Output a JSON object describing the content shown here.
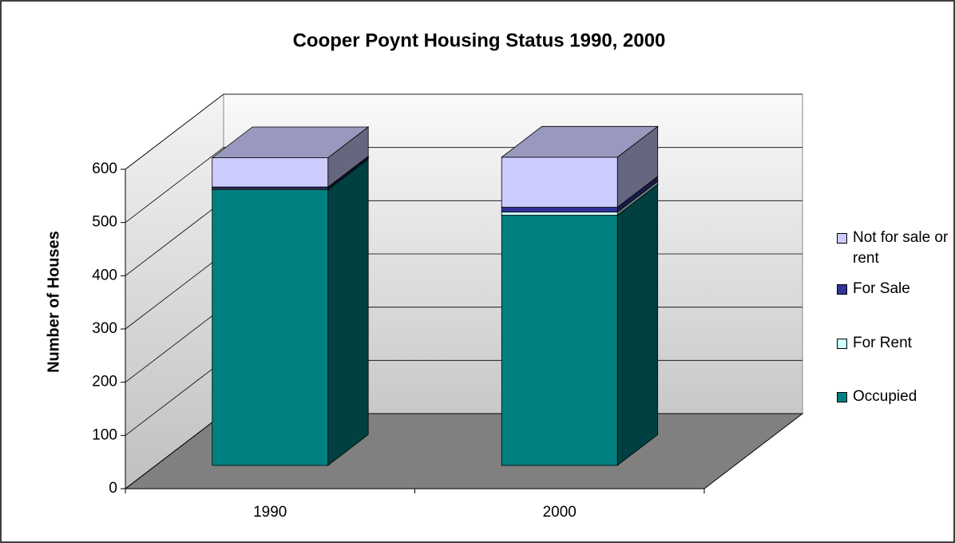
{
  "chart_data": {
    "type": "bar3d-stacked",
    "title": "Cooper Poynt Housing Status 1990, 2000",
    "y_label": "Number of Houses",
    "categories": [
      "1990",
      "2000"
    ],
    "series": [
      {
        "name": "Occupied",
        "color": "#008080",
        "values": [
          518,
          470
        ]
      },
      {
        "name": "For Rent",
        "color": "#ccffff",
        "values": [
          2,
          6
        ]
      },
      {
        "name": "For Sale",
        "color": "#333399",
        "values": [
          3,
          9
        ]
      },
      {
        "name": "Not for sale or rent",
        "color": "#ccccff",
        "values": [
          55,
          94
        ]
      }
    ],
    "ylim": [
      0,
      600
    ],
    "yticks": [
      0,
      100,
      200,
      300,
      400,
      500,
      600
    ],
    "grid": true,
    "legend": "right"
  }
}
